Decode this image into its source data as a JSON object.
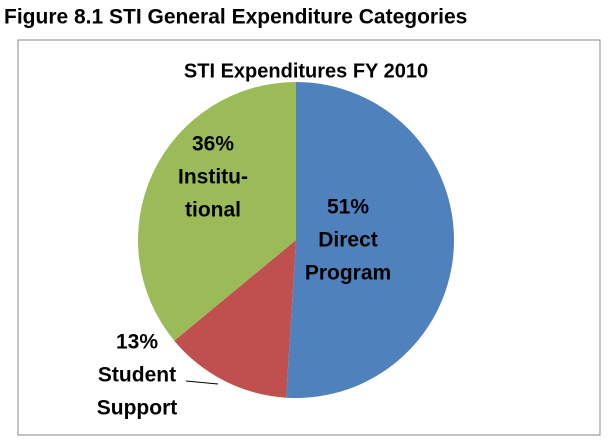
{
  "figure_title": "Figure 8.1 STI General Expenditure Categories",
  "chart_data": {
    "type": "pie",
    "title": "STI Expenditures FY 2010",
    "categories": [
      [
        "Direct",
        "Program"
      ],
      [
        "Student",
        "Support"
      ],
      [
        "Institu-",
        "tional"
      ]
    ],
    "values": [
      51,
      13,
      36
    ],
    "value_labels": [
      "51%",
      "13%",
      "36%"
    ],
    "colors": [
      "#4f81bd",
      "#c0504d",
      "#9bbb59"
    ]
  }
}
